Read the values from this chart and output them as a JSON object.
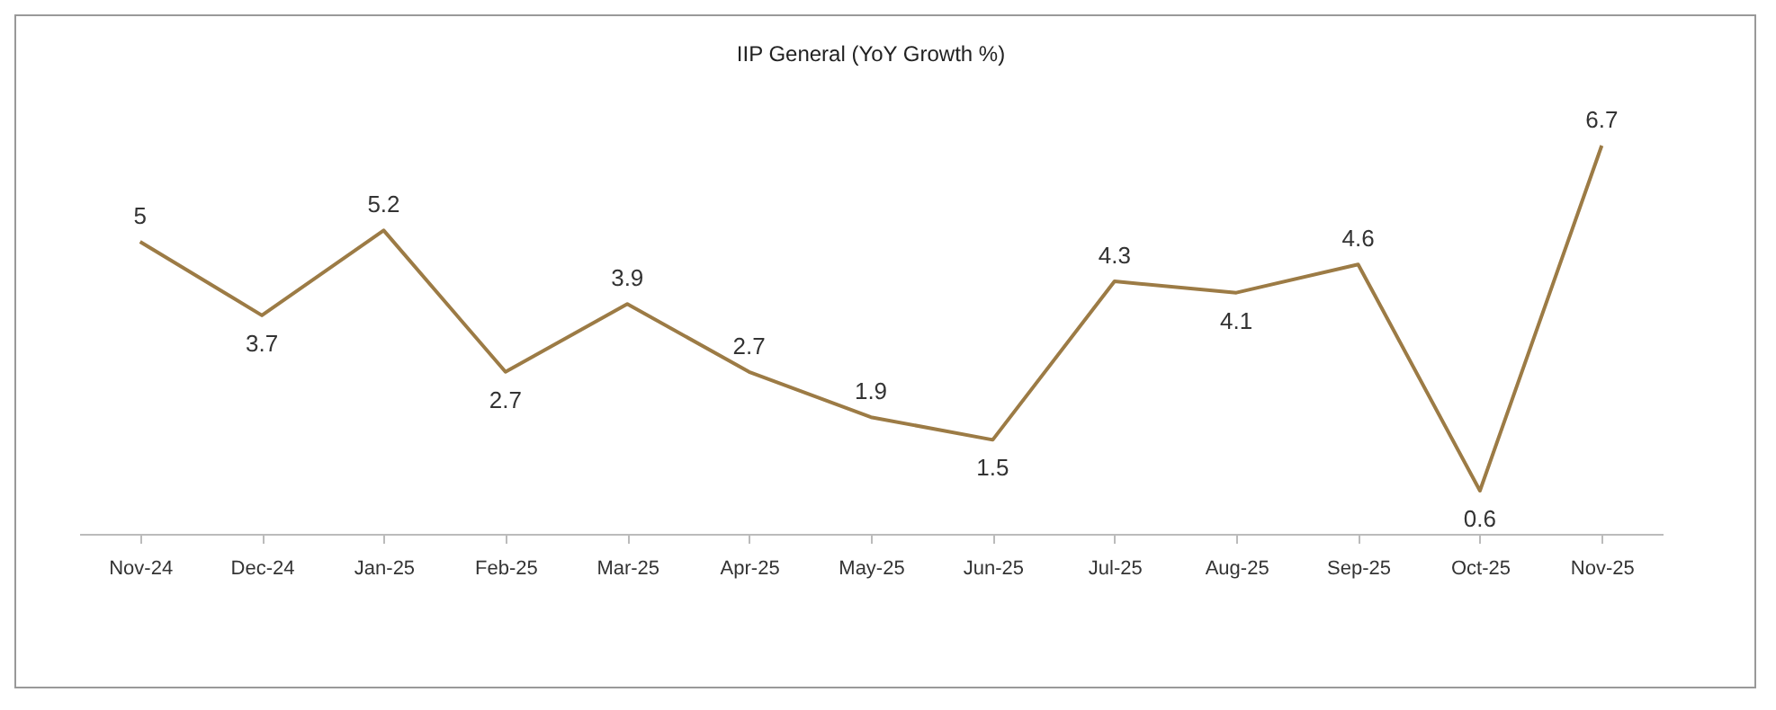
{
  "chart_data": {
    "type": "line",
    "title": "IIP General (YoY Growth %)",
    "categories": [
      "Nov-24",
      "Dec-24",
      "Jan-25",
      "Feb-25",
      "Mar-25",
      "Apr-25",
      "May-25",
      "Jun-25",
      "Jul-25",
      "Aug-25",
      "Sep-25",
      "Oct-25",
      "Nov-25"
    ],
    "series": [
      {
        "color": "#9c7b45",
        "values": [
          5,
          3.7,
          5.2,
          2.7,
          3.9,
          2.7,
          1.9,
          1.5,
          4.3,
          4.1,
          4.6,
          0.6,
          6.7
        ]
      }
    ],
    "data_labels": true,
    "grid": false,
    "legend": false,
    "marker": "none",
    "line_style": "solid",
    "tick_labels": "x"
  }
}
